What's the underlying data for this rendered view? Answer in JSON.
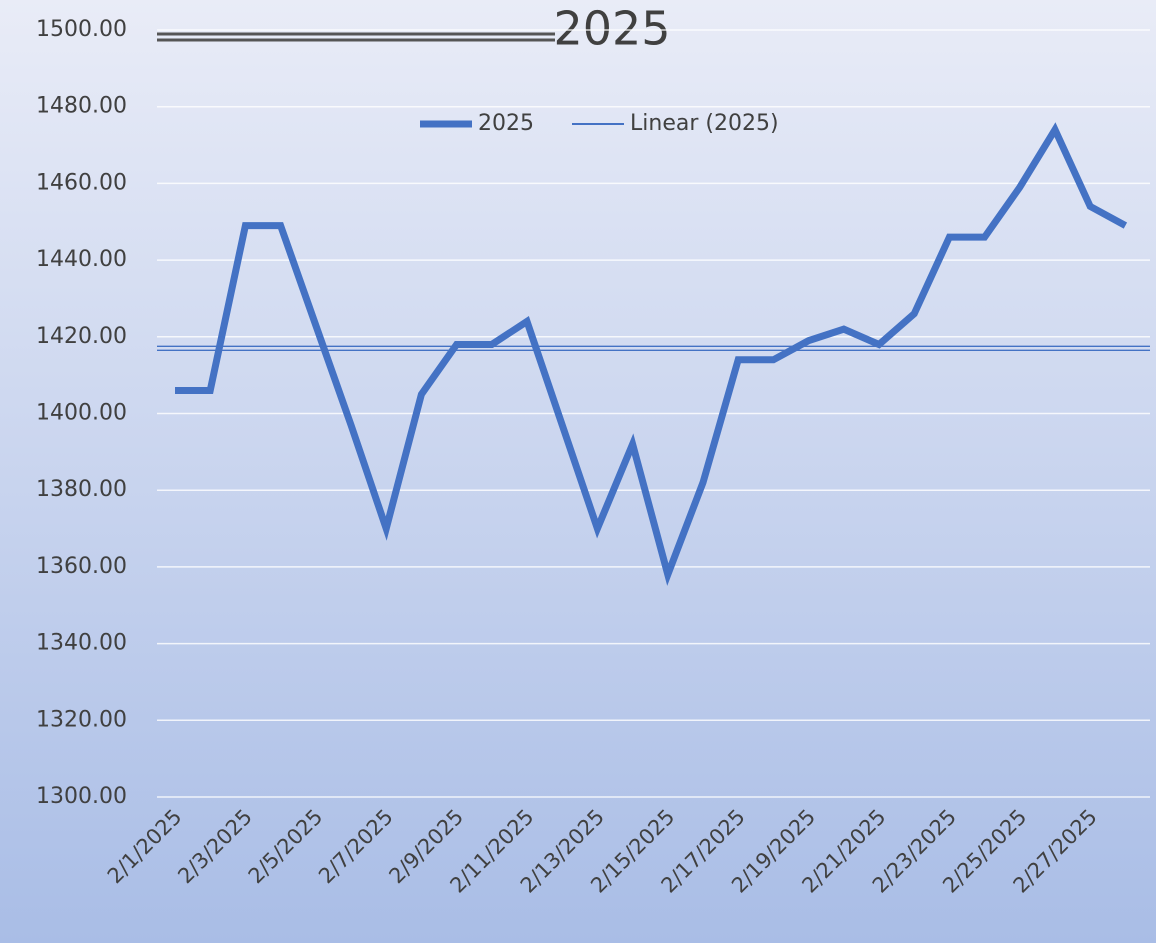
{
  "chart_data": {
    "type": "line",
    "title": "2025",
    "categories": [
      "2/1/2025",
      null,
      "2/3/2025",
      null,
      "2/5/2025",
      null,
      "2/7/2025",
      null,
      "2/9/2025",
      null,
      "2/11/2025",
      null,
      "2/13/2025",
      null,
      "2/15/2025",
      null,
      "2/17/2025",
      null,
      "2/19/2025",
      null,
      "2/21/2025",
      null,
      "2/23/2025",
      null,
      "2/25/2025",
      null,
      "2/27/2025",
      null
    ],
    "series": [
      {
        "name": "2025",
        "color": "#4472c4",
        "values": [
          1406,
          1406,
          1449,
          1449,
          1423,
          1397,
          1370,
          1405,
          1418,
          1418,
          1424,
          1397,
          1370,
          1392,
          1358,
          1382,
          1414,
          1414,
          1419,
          1422,
          1418,
          1426,
          1446,
          1446,
          1459,
          1474,
          1454,
          1449
        ]
      }
    ],
    "trendline": {
      "name": "Linear (2025)",
      "color": "#4472c4",
      "values": [
        1417,
        1417
      ]
    },
    "ylim": [
      1300,
      1500
    ],
    "yticks": [
      {
        "value": 1300,
        "label": "1300.00"
      },
      {
        "value": 1320,
        "label": "1320.00"
      },
      {
        "value": 1340,
        "label": "1340.00"
      },
      {
        "value": 1360,
        "label": "1360.00"
      },
      {
        "value": 1380,
        "label": "1380.00"
      },
      {
        "value": 1400,
        "label": "1400.00"
      },
      {
        "value": 1420,
        "label": "1420.00"
      },
      {
        "value": 1440,
        "label": "1440.00"
      },
      {
        "value": 1460,
        "label": "1460.00"
      },
      {
        "value": 1480,
        "label": "1480.00"
      },
      {
        "value": 1500,
        "label": "1500.00"
      }
    ],
    "grid": true
  }
}
